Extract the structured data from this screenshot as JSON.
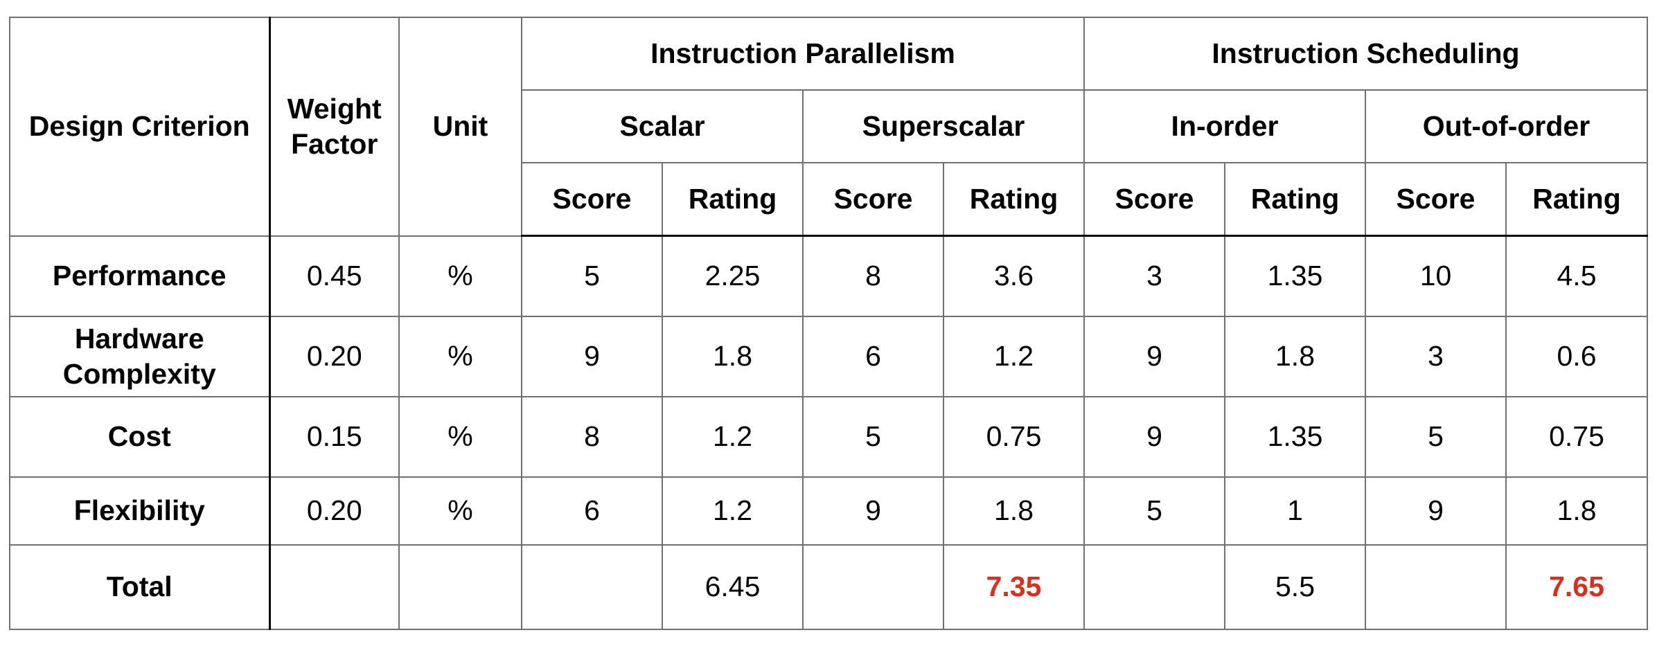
{
  "headers": {
    "design_criterion": "Design Criterion",
    "weight_factor": "Weight Factor",
    "unit": "Unit",
    "group1": "Instruction Parallelism",
    "group2": "Instruction Scheduling",
    "sub": [
      "Scalar",
      "Superscalar",
      "In-order",
      "Out-of-order"
    ],
    "score": "Score",
    "rating": "Rating"
  },
  "rows": [
    {
      "criterion": "Performance",
      "weight": "0.45",
      "unit": "%",
      "cells": [
        "5",
        "2.25",
        "8",
        "3.6",
        "3",
        "1.35",
        "10",
        "4.5"
      ]
    },
    {
      "criterion": "Hardware Complexity",
      "weight": "0.20",
      "unit": "%",
      "cells": [
        "9",
        "1.8",
        "6",
        "1.2",
        "9",
        "1.8",
        "3",
        "0.6"
      ]
    },
    {
      "criterion": "Cost",
      "weight": "0.15",
      "unit": "%",
      "cells": [
        "8",
        "1.2",
        "5",
        "0.75",
        "9",
        "1.35",
        "5",
        "0.75"
      ]
    },
    {
      "criterion": "Flexibility",
      "weight": "0.20",
      "unit": "%",
      "cells": [
        "6",
        "1.2",
        "9",
        "1.8",
        "5",
        "1",
        "9",
        "1.8"
      ]
    }
  ],
  "total": {
    "label": "Total",
    "cells": [
      "",
      "6.45",
      "",
      "7.35",
      "",
      "5.5",
      "",
      "7.65"
    ],
    "highlight_color": "#d9301c"
  }
}
